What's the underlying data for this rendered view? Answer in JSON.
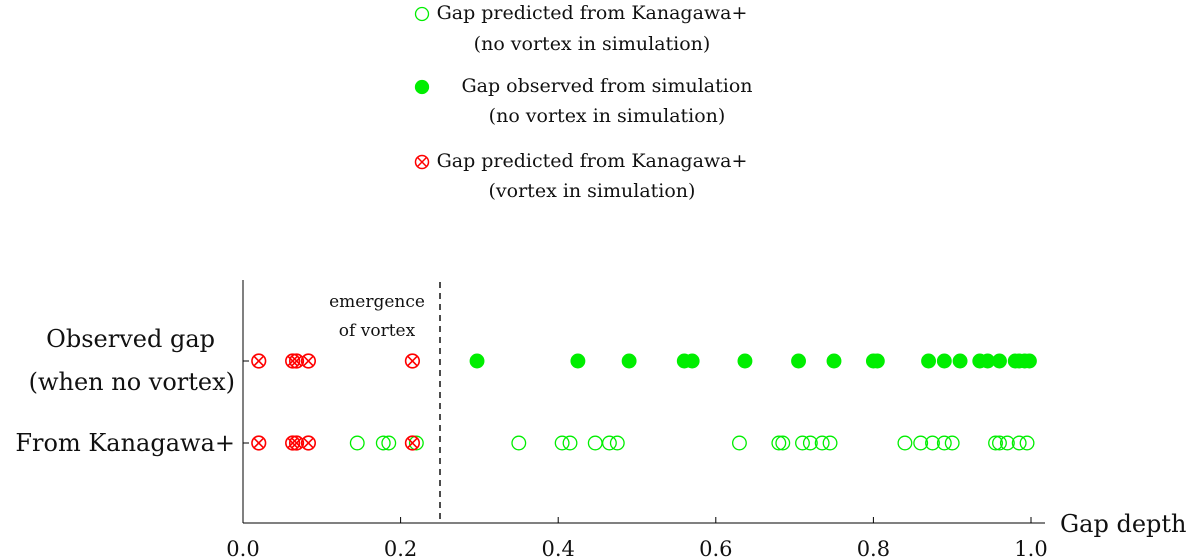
{
  "chart_data": {
    "type": "scatter",
    "xlabel": "Gap depth",
    "xlim": [
      0.0,
      1.0
    ],
    "xticks": [
      "0.0",
      "0.2",
      "0.4",
      "0.6",
      "0.8",
      "1.0"
    ],
    "xtick_values": [
      0.0,
      0.2,
      0.4,
      0.6,
      0.8,
      1.0
    ],
    "grid": false,
    "legend_position": "top-center",
    "rows": [
      {
        "label_line1": "Observed gap",
        "label_line2": "(when no vortex)"
      },
      {
        "label_line1": "From Kanagawa+",
        "label_line2": ""
      }
    ],
    "threshold": {
      "x": 0.25,
      "label_line1": "emergence",
      "label_line2": "of vortex"
    },
    "legend": [
      {
        "marker": "open-green",
        "line1": "Gap predicted from Kanagawa+",
        "line2": "(no vortex in simulation)"
      },
      {
        "marker": "filled-green",
        "line1": "Gap observed from simulation",
        "line2": "(no vortex in simulation)"
      },
      {
        "marker": "crossed-red",
        "line1": "Gap predicted from Kanagawa+",
        "line2": "(vortex in simulation)"
      }
    ],
    "series": [
      {
        "marker": "crossed-red",
        "row": "both",
        "x": [
          0.02,
          0.063,
          0.068,
          0.083,
          0.215
        ]
      },
      {
        "marker": "filled-green",
        "row": "Observed gap",
        "x": [
          0.297,
          0.425,
          0.49,
          0.56,
          0.57,
          0.637,
          0.705,
          0.75,
          0.8,
          0.805,
          0.87,
          0.89,
          0.91,
          0.935,
          0.945,
          0.96,
          0.98,
          0.985,
          0.992,
          0.998
        ]
      },
      {
        "marker": "open-green",
        "row": "From Kanagawa+",
        "x": [
          0.145,
          0.178,
          0.185,
          0.22,
          0.35,
          0.405,
          0.415,
          0.447,
          0.465,
          0.475,
          0.63,
          0.68,
          0.685,
          0.71,
          0.72,
          0.735,
          0.745,
          0.84,
          0.86,
          0.875,
          0.89,
          0.9,
          0.955,
          0.96,
          0.97,
          0.985,
          0.995
        ]
      }
    ],
    "colors": {
      "green": "#00ee00",
      "red": "#ff0000",
      "axis": "#000000"
    }
  }
}
